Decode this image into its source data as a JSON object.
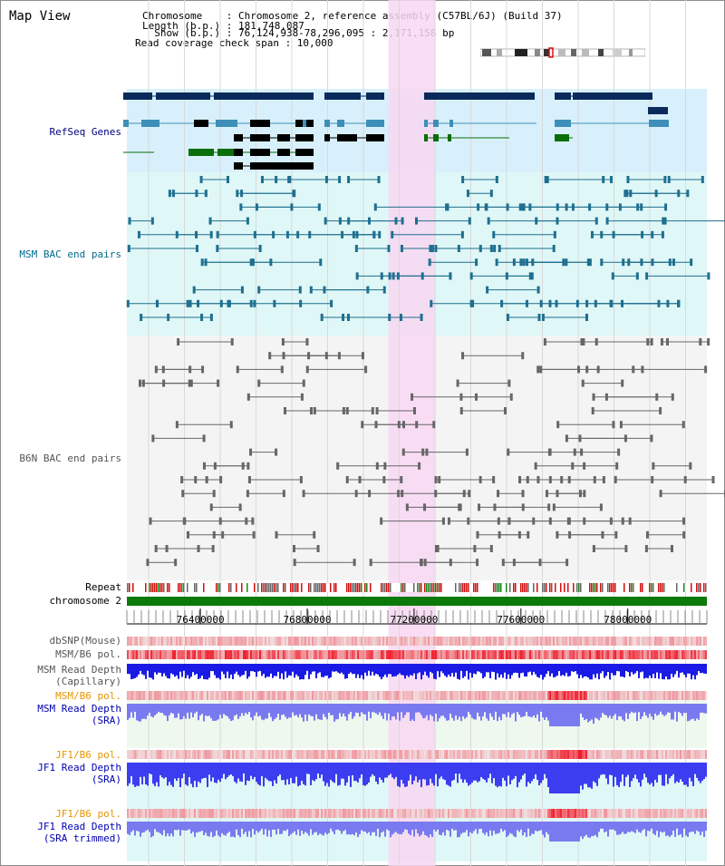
{
  "header": {
    "title": "Map View",
    "info_lines": [
      "Chromosome    : Chromosome 2, reference assembly (C57BL/6J) (Build 37)",
      "Length (b.p.) : 181,748,087",
      "  Show (b.p.) : 76,124,938-78,296,095 : 2,171,158 bp",
      "Read coverage check span : 10,000"
    ]
  },
  "tracks": {
    "refseq": {
      "label": "RefSeq Genes",
      "color": "#000080"
    },
    "msm_bac": {
      "label": "MSM BAC end pairs",
      "color": "#006b8f"
    },
    "b6n_bac": {
      "label": "B6N BAC end pairs",
      "color": "#555555"
    },
    "repeat": {
      "label": "Repeat",
      "color": "#000000"
    },
    "chromosome": {
      "label": "chromosome 2",
      "color": "#000000"
    },
    "dbsnp": {
      "label": "dbSNP(Mouse)",
      "color": "#555555"
    },
    "msm_pol": {
      "label": "MSM/B6 pol.",
      "color": "#555555"
    },
    "msm_depth_cap": {
      "label": "MSM Read Depth\n(Capillary)",
      "color": "#555555"
    },
    "msm_pol_sra": {
      "label": "MSM/B6 pol.",
      "color": "#e69500"
    },
    "msm_depth_sra": {
      "label": "MSM Read Depth\n(SRA)",
      "color": "#0000b0"
    },
    "jf1_pol": {
      "label": "JF1/B6 pol.",
      "color": "#e69500"
    },
    "jf1_depth_sra": {
      "label": "JF1 Read Depth\n(SRA)",
      "color": "#0000b0"
    },
    "jf1_pol_trim": {
      "label": "JF1/B6 pol.",
      "color": "#e69500"
    },
    "jf1_depth_trim": {
      "label": "JF1 Read Depth\n(SRA trimmed)",
      "color": "#0000b0"
    }
  },
  "axis": {
    "ticks": [
      "76400000",
      "76800000",
      "77200000",
      "77600000",
      "78000000"
    ],
    "tick_values": [
      76400000,
      76800000,
      77200000,
      77600000,
      78000000
    ],
    "range": [
      76124938,
      78296095
    ]
  },
  "highlight_region": [
    77104000,
    77278000
  ],
  "colors": {
    "gene_dark": "#0a2a5c",
    "gene_teal": "#3d8fb8",
    "gene_black": "#000000",
    "gene_green": "#0a6e0a",
    "refseq_bg": "#d8f0fb",
    "msm_bg": "#dff7f7",
    "highlight": "#f8d7f2",
    "chrom_bar": "#0b7a0b",
    "depth_cap": "#1a1ae6",
    "depth_sra": "#7a7af0"
  }
}
